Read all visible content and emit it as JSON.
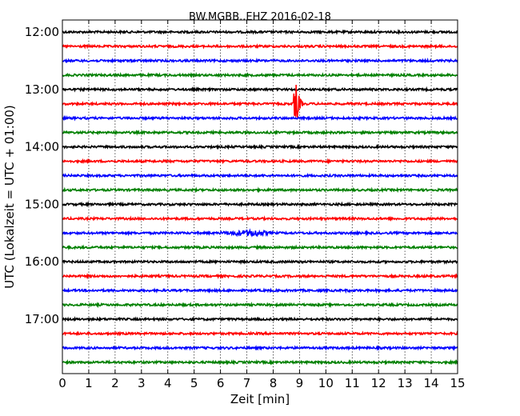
{
  "chart_data": {
    "type": "line",
    "title": "BW.MGBB..EHZ 2016-02-18",
    "xlabel": "Zeit  [min]",
    "ylabel": "UTC (Lokalzeit = UTC + 01:00)",
    "xlim": [
      0,
      15
    ],
    "x_ticks": [
      "0",
      "1",
      "2",
      "3",
      "4",
      "5",
      "6",
      "7",
      "8",
      "9",
      "10",
      "11",
      "12",
      "13",
      "14",
      "15"
    ],
    "y_ticks": [
      {
        "time": "12:00",
        "row": 0
      },
      {
        "time": "13:00",
        "row": 4
      },
      {
        "time": "14:00",
        "row": 8
      },
      {
        "time": "15:00",
        "row": 12
      },
      {
        "time": "16:00",
        "row": 16
      },
      {
        "time": "17:00",
        "row": 20
      }
    ],
    "grid": true,
    "trace_colors": [
      "#000000",
      "#ff0000",
      "#0000ff",
      "#008000"
    ],
    "rows": 24,
    "row_interval_min": 15,
    "events": [
      {
        "row": 5,
        "start_min": 8.75,
        "end_min": 9.2,
        "peak_min": 8.88,
        "relative_amplitude": 1.0
      },
      {
        "row": 14,
        "start_min": 6.0,
        "end_min": 8.8,
        "peak_min": 7.4,
        "relative_amplitude": 0.18
      },
      {
        "row": 9,
        "start_min": 11.0,
        "end_min": 11.6,
        "peak_min": 11.3,
        "relative_amplitude": 0.06
      },
      {
        "row": 18,
        "start_min": 10.4,
        "end_min": 11.2,
        "peak_min": 10.9,
        "relative_amplitude": 0.07
      }
    ]
  }
}
